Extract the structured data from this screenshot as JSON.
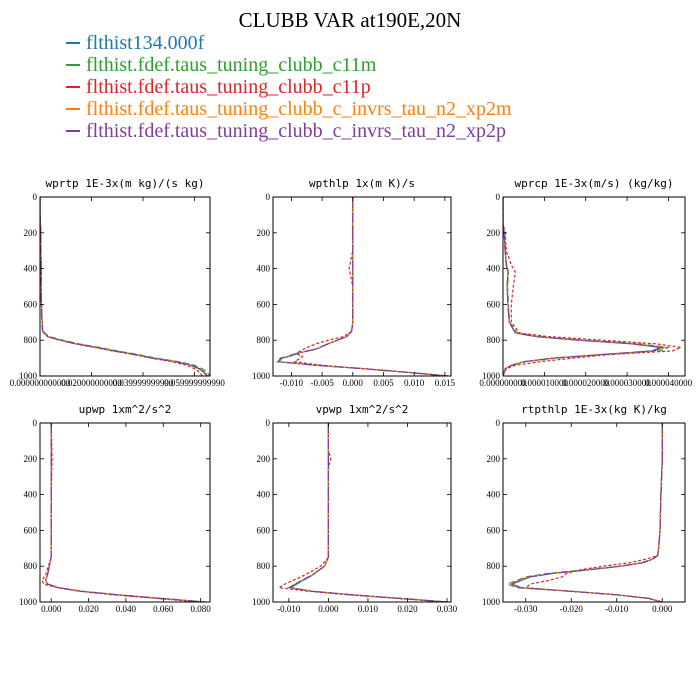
{
  "title": "CLUBB VAR at190E,20N",
  "legend": [
    {
      "label": "flthist134.000f",
      "color": "#1f77b4",
      "dash": ""
    },
    {
      "label": "flthist.fdef.taus_tuning_clubb_c11m",
      "color": "#2ca02c",
      "dash": "6,3"
    },
    {
      "label": "flthist.fdef.taus_tuning_clubb_c11p",
      "color": "#d62728",
      "dash": "3,2"
    },
    {
      "label": "flthist.fdef.taus_tuning_clubb_c_invrs_tau_n2_xp2m",
      "color": "#ff7f0e",
      "dash": "8,3"
    },
    {
      "label": "flthist.fdef.taus_tuning_clubb_c_invrs_tau_n2_xp2p",
      "color": "#7f3f98",
      "dash": "10,2,2,2"
    }
  ],
  "chart_data": [
    {
      "type": "line",
      "title": "wprtp  1E-3x(m kg)/(s kg)",
      "xlim": [
        0,
        0.066
      ],
      "ylim": [
        1000,
        0
      ],
      "xticks": [
        "0.000000000000",
        "0.020000000000",
        "0.039999999990",
        "0.059999999990"
      ],
      "xtick_values": [
        0,
        0.02,
        0.04,
        0.06
      ],
      "yticks": [
        "0",
        "200",
        "400",
        "600",
        "800",
        "1000"
      ],
      "y": [
        0,
        100,
        200,
        300,
        400,
        500,
        600,
        700,
        750,
        780,
        800,
        820,
        840,
        860,
        880,
        900,
        920,
        940,
        960,
        980,
        1000
      ],
      "series": [
        {
          "values": [
            0,
            0,
            0.0003,
            0.0003,
            0.0005,
            0.0004,
            0.0006,
            0.0008,
            0.001,
            0.003,
            0.008,
            0.014,
            0.022,
            0.029,
            0.037,
            0.044,
            0.053,
            0.059,
            0.062,
            0.064,
            0.065
          ]
        },
        {
          "values": [
            0,
            0,
            0.0003,
            0.0003,
            0.0005,
            0.0004,
            0.0006,
            0.0008,
            0.0012,
            0.0035,
            0.009,
            0.015,
            0.023,
            0.03,
            0.038,
            0.045,
            0.054,
            0.06,
            0.063,
            0.065,
            0.066
          ]
        },
        {
          "values": [
            0,
            0,
            0.0003,
            0.0003,
            0.0005,
            0.0004,
            0.0006,
            0.0008,
            0.001,
            0.003,
            0.0075,
            0.0135,
            0.021,
            0.028,
            0.036,
            0.043,
            0.051,
            0.057,
            0.06,
            0.062,
            0.063
          ]
        },
        {
          "values": [
            0,
            0,
            0.0003,
            0.0003,
            0.0005,
            0.0004,
            0.0006,
            0.0008,
            0.001,
            0.0028,
            0.0078,
            0.0138,
            0.0215,
            0.0285,
            0.0365,
            0.0435,
            0.0525,
            0.0585,
            0.0615,
            0.0635,
            0.0645
          ]
        },
        {
          "values": [
            0,
            0,
            0.0003,
            0.0003,
            0.0005,
            0.0004,
            0.0006,
            0.0008,
            0.001,
            0.0029,
            0.0079,
            0.0139,
            0.0218,
            0.0288,
            0.0368,
            0.0438,
            0.0528,
            0.0588,
            0.0618,
            0.0638,
            0.0648
          ]
        }
      ]
    },
    {
      "type": "line",
      "title": "wpthlp  1x(m K)/s",
      "xlim": [
        -0.013,
        0.016
      ],
      "ylim": [
        1000,
        0
      ],
      "xticks": [
        "-0.010",
        "-0.005",
        "0.000",
        "0.005",
        "0.010",
        "0.015"
      ],
      "xtick_values": [
        -0.01,
        -0.005,
        0,
        0.005,
        0.01,
        0.015
      ],
      "yticks": [
        "0",
        "200",
        "400",
        "600",
        "800",
        "1000"
      ],
      "y": [
        0,
        300,
        400,
        500,
        700,
        750,
        780,
        800,
        820,
        850,
        870,
        880,
        890,
        900,
        920,
        940,
        960,
        980,
        1000
      ],
      "series": [
        {
          "values": [
            0,
            0,
            0,
            0,
            0,
            -0.0002,
            -0.001,
            -0.0025,
            -0.004,
            -0.006,
            -0.0085,
            -0.0095,
            -0.0102,
            -0.0115,
            -0.012,
            -0.006,
            0.002,
            0.009,
            0.0155
          ]
        },
        {
          "values": [
            0,
            0,
            0,
            0,
            0,
            -0.0002,
            -0.001,
            -0.0025,
            -0.004,
            -0.006,
            -0.0088,
            -0.0098,
            -0.0105,
            -0.0118,
            -0.0123,
            -0.006,
            0.002,
            0.009,
            0.0155
          ]
        },
        {
          "values": [
            0,
            0,
            -0.0006,
            0,
            0,
            -0.0002,
            -0.0015,
            -0.004,
            -0.006,
            -0.008,
            -0.009,
            -0.009,
            -0.0082,
            -0.0085,
            -0.0095,
            -0.005,
            0.002,
            0.009,
            0.0155
          ]
        },
        {
          "values": [
            0,
            0,
            0,
            0,
            0,
            -0.0002,
            -0.001,
            -0.0025,
            -0.004,
            -0.006,
            -0.0086,
            -0.0096,
            -0.0103,
            -0.0116,
            -0.0121,
            -0.006,
            0.002,
            0.009,
            0.0155
          ]
        },
        {
          "values": [
            0,
            0,
            0,
            0,
            0,
            -0.0002,
            -0.001,
            -0.0025,
            -0.004,
            -0.006,
            -0.0087,
            -0.0097,
            -0.0104,
            -0.0117,
            -0.0122,
            -0.006,
            0.002,
            0.009,
            0.0155
          ]
        }
      ]
    },
    {
      "type": "line",
      "title": "wprcp  1E-3x(m/s) (kg/kg)",
      "xlim": [
        0,
        4.4e-05
      ],
      "ylim": [
        1000,
        0
      ],
      "xticks": [
        "0.000000000",
        "0.000010000",
        "0.000020000",
        "0.000030000",
        "0.000040000"
      ],
      "xtick_values": [
        0,
        1e-05,
        2e-05,
        3e-05,
        4e-05
      ],
      "yticks": [
        "0",
        "200",
        "400",
        "600",
        "800",
        "1000"
      ],
      "y": [
        0,
        150,
        200,
        300,
        380,
        420,
        500,
        600,
        700,
        760,
        780,
        800,
        820,
        840,
        860,
        880,
        900,
        920,
        940,
        960,
        1000
      ],
      "series": [
        {
          "values": [
            0,
            0,
            3e-07,
            5e-07,
            8e-07,
            1.2e-06,
            1e-06,
            1.2e-06,
            1.5e-06,
            3e-06,
            8e-06,
            1.8e-05,
            3.1e-05,
            3.8e-05,
            3.6e-05,
            2.4e-05,
            1.2e-05,
            5e-06,
            2e-06,
            5e-07,
            0
          ]
        },
        {
          "values": [
            0,
            0,
            4e-07,
            6e-07,
            9e-07,
            1.3e-06,
            1.1e-06,
            1.3e-06,
            1.6e-06,
            3.5e-06,
            9e-06,
            2e-05,
            3.3e-05,
            4e-05,
            3.8e-05,
            2.5e-05,
            1.3e-05,
            5.5e-06,
            2e-06,
            5e-07,
            0
          ]
        },
        {
          "values": [
            0,
            0,
            5e-07,
            8e-07,
            2e-06,
            3e-06,
            2.5e-06,
            2e-06,
            2e-06,
            4e-06,
            1.1e-05,
            2.4e-05,
            3.7e-05,
            4.3e-05,
            4.1e-05,
            2.6e-05,
            1.7e-05,
            9e-06,
            3e-06,
            8e-07,
            0
          ]
        },
        {
          "values": [
            0,
            0,
            3e-07,
            5e-07,
            8e-07,
            1.2e-06,
            1e-06,
            1.2e-06,
            1.5e-06,
            3e-06,
            8.5e-06,
            1.9e-05,
            3.2e-05,
            3.9e-05,
            3.7e-05,
            2.45e-05,
            1.25e-05,
            5e-06,
            2e-06,
            5e-07,
            0
          ]
        },
        {
          "values": [
            0,
            0,
            3e-07,
            5e-07,
            8e-07,
            1.2e-06,
            1e-06,
            1.2e-06,
            1.5e-06,
            3e-06,
            8.2e-06,
            1.85e-05,
            3.15e-05,
            3.85e-05,
            3.65e-05,
            2.42e-05,
            1.22e-05,
            5e-06,
            2e-06,
            5e-07,
            0
          ]
        }
      ]
    },
    {
      "type": "line",
      "title": "upwp  1xm^2/s^2",
      "xlim": [
        -0.006,
        0.085
      ],
      "ylim": [
        1000,
        0
      ],
      "xticks": [
        "0.000",
        "0.020",
        "0.040",
        "0.060",
        "0.080"
      ],
      "xtick_values": [
        0,
        0.02,
        0.04,
        0.06,
        0.08
      ],
      "yticks": [
        "0",
        "200",
        "400",
        "600",
        "800",
        "1000"
      ],
      "y": [
        0,
        200,
        400,
        600,
        750,
        800,
        850,
        880,
        900,
        920,
        940,
        960,
        980,
        1000
      ],
      "series": [
        {
          "values": [
            0,
            0,
            0,
            0,
            0,
            -0.001,
            -0.002,
            -0.003,
            -0.002,
            0.004,
            0.016,
            0.035,
            0.058,
            0.082
          ]
        },
        {
          "values": [
            0,
            0,
            0,
            0,
            0,
            -0.001,
            -0.002,
            -0.003,
            -0.002,
            0.004,
            0.017,
            0.036,
            0.059,
            0.083
          ]
        },
        {
          "values": [
            0,
            0.0005,
            0,
            0,
            0,
            -0.0015,
            -0.003,
            -0.005,
            -0.004,
            0.003,
            0.015,
            0.033,
            0.056,
            0.08
          ]
        },
        {
          "values": [
            0,
            0,
            0,
            0,
            0,
            -0.001,
            -0.002,
            -0.003,
            -0.002,
            0.004,
            0.0165,
            0.0355,
            0.0585,
            0.0825
          ]
        },
        {
          "values": [
            0,
            0,
            0,
            0,
            0,
            -0.001,
            -0.002,
            -0.003,
            -0.002,
            0.004,
            0.0162,
            0.0352,
            0.0582,
            0.0822
          ]
        }
      ]
    },
    {
      "type": "line",
      "title": "vpwp  1xm^2/s^2",
      "xlim": [
        -0.014,
        0.031
      ],
      "ylim": [
        1000,
        0
      ],
      "xticks": [
        "-0.010",
        "0.000",
        "0.010",
        "0.020",
        "0.030"
      ],
      "xtick_values": [
        -0.01,
        0,
        0.01,
        0.02,
        0.03
      ],
      "yticks": [
        "0",
        "200",
        "400",
        "600",
        "800",
        "1000"
      ],
      "y": [
        0,
        150,
        200,
        250,
        400,
        600,
        750,
        800,
        850,
        900,
        920,
        940,
        960,
        980,
        1000
      ],
      "series": [
        {
          "values": [
            0,
            0,
            0,
            0,
            0,
            0,
            0,
            -0.001,
            -0.004,
            -0.008,
            -0.0095,
            -0.004,
            0.006,
            0.018,
            0.03
          ]
        },
        {
          "values": [
            0,
            0,
            0,
            0,
            0,
            0,
            0,
            -0.001,
            -0.0042,
            -0.0085,
            -0.01,
            -0.004,
            0.006,
            0.018,
            0.03
          ]
        },
        {
          "values": [
            0,
            0,
            0.0006,
            0,
            0,
            0,
            0,
            -0.002,
            -0.006,
            -0.011,
            -0.0125,
            -0.005,
            0.005,
            0.017,
            0.03
          ]
        },
        {
          "values": [
            0,
            0,
            0,
            0,
            0,
            0,
            0,
            -0.001,
            -0.0041,
            -0.0082,
            -0.0097,
            -0.004,
            0.006,
            0.018,
            0.03
          ]
        },
        {
          "values": [
            0,
            0,
            0,
            0,
            0,
            0,
            0,
            -0.001,
            -0.0041,
            -0.0083,
            -0.0098,
            -0.004,
            0.006,
            0.018,
            0.03
          ]
        }
      ]
    },
    {
      "type": "line",
      "title": "rtpthlp  1E-3x(kg K)/kg",
      "xlim": [
        -0.035,
        0.005
      ],
      "ylim": [
        1000,
        0
      ],
      "xticks": [
        "-0.030",
        "-0.020",
        "-0.010",
        "0.000"
      ],
      "xtick_values": [
        -0.03,
        -0.02,
        -0.01,
        0
      ],
      "yticks": [
        "0",
        "200",
        "400",
        "600",
        "800",
        "1000"
      ],
      "y": [
        0,
        200,
        400,
        600,
        700,
        740,
        760,
        780,
        800,
        820,
        840,
        860,
        880,
        900,
        920,
        940,
        960,
        980,
        1000
      ],
      "series": [
        {
          "values": [
            0,
            0,
            -0.0003,
            -0.0005,
            -0.0008,
            -0.001,
            -0.002,
            -0.004,
            -0.009,
            -0.016,
            -0.024,
            -0.029,
            -0.031,
            -0.033,
            -0.031,
            -0.02,
            -0.01,
            -0.003,
            0
          ]
        },
        {
          "values": [
            0,
            0,
            -0.0003,
            -0.0005,
            -0.0008,
            -0.001,
            -0.0022,
            -0.0045,
            -0.0095,
            -0.017,
            -0.025,
            -0.03,
            -0.032,
            -0.034,
            -0.032,
            -0.02,
            -0.01,
            -0.003,
            0
          ]
        },
        {
          "values": [
            0,
            0,
            -0.0003,
            -0.0005,
            -0.0008,
            -0.001,
            -0.0035,
            -0.007,
            -0.013,
            -0.018,
            -0.021,
            -0.022,
            -0.025,
            -0.029,
            -0.03,
            -0.02,
            -0.01,
            -0.003,
            0
          ]
        },
        {
          "values": [
            0,
            0,
            -0.0003,
            -0.0005,
            -0.0008,
            -0.001,
            -0.0021,
            -0.0042,
            -0.0092,
            -0.0165,
            -0.0245,
            -0.0295,
            -0.0315,
            -0.0335,
            -0.0315,
            -0.02,
            -0.01,
            -0.003,
            0
          ]
        },
        {
          "values": [
            0,
            0,
            -0.0003,
            -0.0005,
            -0.0008,
            -0.001,
            -0.002,
            -0.0041,
            -0.0091,
            -0.0162,
            -0.0242,
            -0.0292,
            -0.0312,
            -0.0332,
            -0.0312,
            -0.02,
            -0.01,
            -0.003,
            0
          ]
        }
      ]
    }
  ]
}
